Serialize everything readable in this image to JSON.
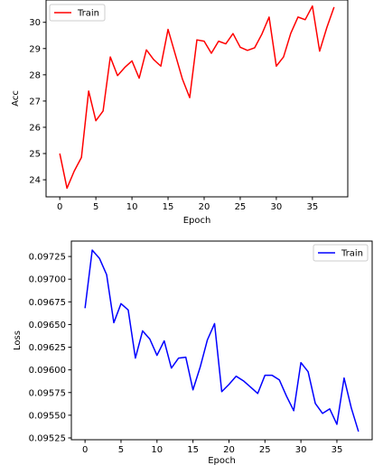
{
  "chart_data": [
    {
      "type": "line",
      "xlabel": "Epoch",
      "ylabel": "Acc",
      "xlim": [
        -1.9,
        39.9
      ],
      "ylim": [
        23.35,
        30.85
      ],
      "xticks": [
        "0",
        "5",
        "10",
        "15",
        "20",
        "25",
        "30",
        "35"
      ],
      "yticks": [
        "24",
        "25",
        "26",
        "27",
        "28",
        "29",
        "30"
      ],
      "legend_position": "top-left",
      "series": [
        {
          "name": "Train",
          "color": "#ff0000",
          "x": [
            0,
            1,
            2,
            3,
            4,
            5,
            6,
            7,
            8,
            9,
            10,
            11,
            12,
            13,
            14,
            15,
            16,
            17,
            18,
            19,
            20,
            21,
            22,
            23,
            24,
            25,
            26,
            27,
            28,
            29,
            30,
            31,
            32,
            33,
            34,
            35,
            36,
            37,
            38
          ],
          "y": [
            25.0,
            23.68,
            24.33,
            24.85,
            27.38,
            26.25,
            26.62,
            28.68,
            27.97,
            28.28,
            28.53,
            27.87,
            28.95,
            28.58,
            28.33,
            29.73,
            28.78,
            27.83,
            27.13,
            29.33,
            29.28,
            28.82,
            29.28,
            29.18,
            29.57,
            29.05,
            28.93,
            29.03,
            29.55,
            30.2,
            28.33,
            28.68,
            29.58,
            30.2,
            30.1,
            30.62,
            28.9,
            29.8,
            30.58
          ]
        }
      ]
    },
    {
      "type": "line",
      "xlabel": "Epoch",
      "ylabel": "Loss",
      "xlim": [
        -1.9,
        39.9
      ],
      "ylim": [
        0.09523,
        0.09742
      ],
      "xticks": [
        "0",
        "5",
        "10",
        "15",
        "20",
        "25",
        "30",
        "35"
      ],
      "yticks": [
        "0.09525",
        "0.09550",
        "0.09575",
        "0.09600",
        "0.09625",
        "0.09650",
        "0.09675",
        "0.09700",
        "0.09725"
      ],
      "legend_position": "top-right",
      "series": [
        {
          "name": "Train",
          "color": "#0000ff",
          "x": [
            0,
            1,
            2,
            3,
            4,
            5,
            6,
            7,
            8,
            9,
            10,
            11,
            12,
            13,
            14,
            15,
            16,
            17,
            18,
            19,
            20,
            21,
            22,
            23,
            24,
            25,
            26,
            27,
            28,
            29,
            30,
            31,
            32,
            33,
            34,
            35,
            36,
            37,
            38
          ],
          "y": [
            0.09668,
            0.09732,
            0.09723,
            0.09705,
            0.09652,
            0.09673,
            0.09666,
            0.09613,
            0.09643,
            0.09634,
            0.09616,
            0.09632,
            0.09602,
            0.09613,
            0.09614,
            0.09578,
            0.09603,
            0.09633,
            0.09651,
            0.09576,
            0.09584,
            0.09593,
            0.09588,
            0.09581,
            0.09574,
            0.09594,
            0.09594,
            0.09589,
            0.09571,
            0.09555,
            0.09608,
            0.09598,
            0.09563,
            0.09552,
            0.09557,
            0.0954,
            0.09591,
            0.09558,
            0.09532
          ]
        }
      ]
    }
  ]
}
